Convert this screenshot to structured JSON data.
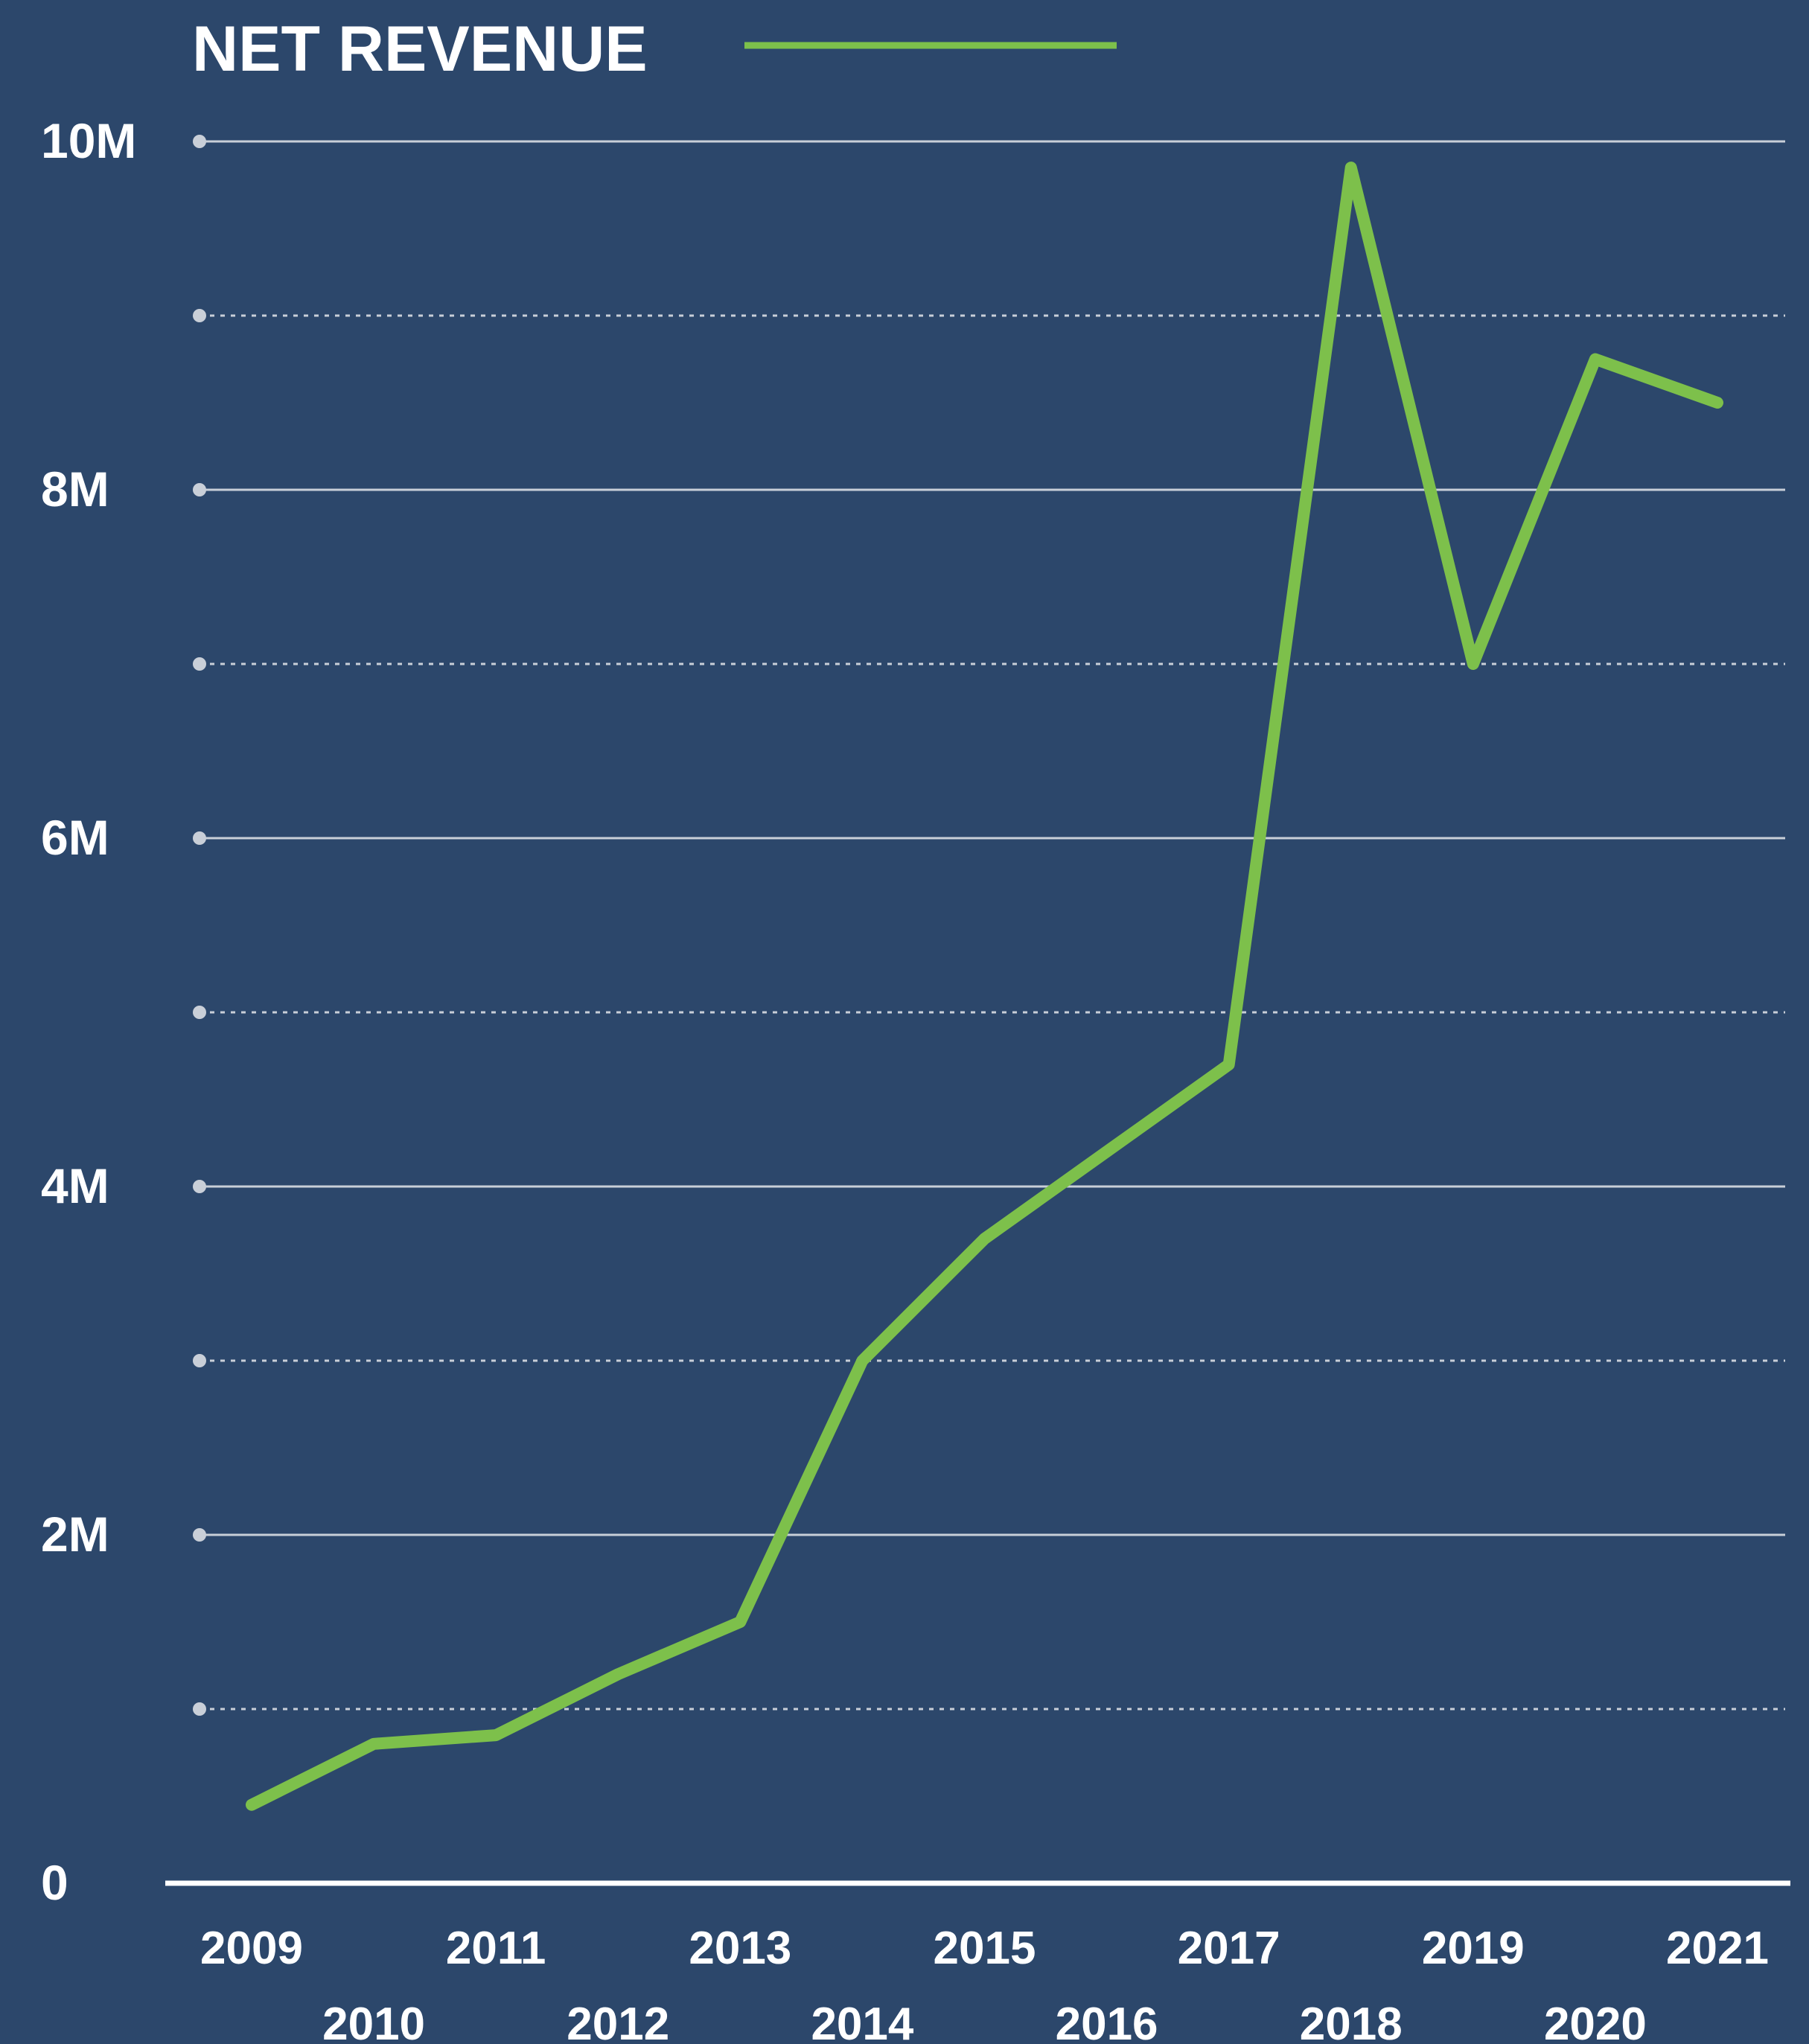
{
  "colors": {
    "background": "#2c476b",
    "line": "#7dc04b",
    "grid": "#c9cfd8",
    "text": "#ffffff"
  },
  "chart_data": {
    "type": "line",
    "title": "NET REVENUE",
    "xlabel": "",
    "ylabel": "",
    "ylim": [
      0,
      10000000
    ],
    "grid": true,
    "legend": "top-left, beside title",
    "yticks": [
      {
        "value": 10000000,
        "label": "10M"
      },
      {
        "value": 8000000,
        "label": "8M"
      },
      {
        "value": 6000000,
        "label": "6M"
      },
      {
        "value": 4000000,
        "label": "4M"
      },
      {
        "value": 2000000,
        "label": "2M"
      },
      {
        "value": 0,
        "label": "0"
      }
    ],
    "minor_gridlines": [
      9000000,
      7000000,
      5000000,
      3000000,
      1000000
    ],
    "categories": [
      "2009",
      "2010",
      "2011",
      "2012",
      "2013",
      "2014",
      "2015",
      "2016",
      "2017",
      "2018",
      "2019",
      "2020",
      "2021"
    ],
    "series": [
      {
        "name": "NET REVENUE",
        "values": [
          450000,
          800000,
          850000,
          1200000,
          1500000,
          3000000,
          3700000,
          4200000,
          4700000,
          9850000,
          7000000,
          8750000,
          8500000
        ]
      }
    ]
  }
}
